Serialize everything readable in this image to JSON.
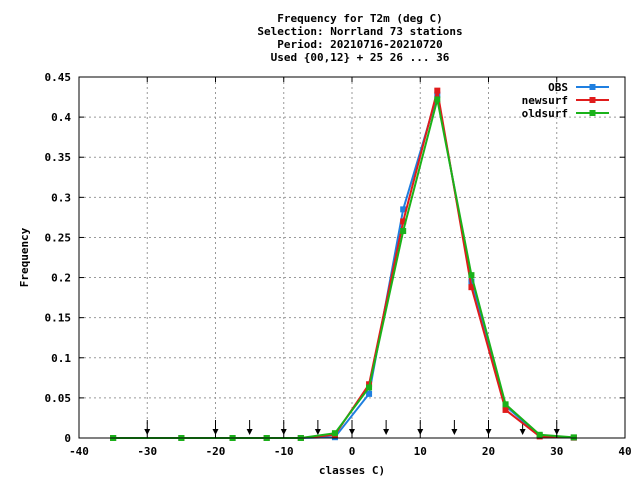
{
  "chart_data": {
    "type": "line",
    "title_lines": [
      "Frequency  for T2m (deg C)",
      "Selection: Norrland     73 stations",
      "Period: 20210716-20210720",
      "Used {00,12} + 25 26 ... 36"
    ],
    "xlabel": "classes C)",
    "ylabel": "Frequency",
    "xlim": [
      -40,
      40
    ],
    "ylim": [
      0,
      0.45
    ],
    "xticks": [
      -40,
      -30,
      -20,
      -10,
      0,
      10,
      20,
      30,
      40
    ],
    "yticks": [
      0,
      0.05,
      0.1,
      0.15,
      0.2,
      0.25,
      0.3,
      0.35,
      0.4,
      0.45
    ],
    "ytick_labels": [
      "0",
      "0.05",
      "0.1",
      "0.15",
      "0.2",
      "0.25",
      "0.3",
      "0.35",
      "0.4",
      "0.45"
    ],
    "grid": true,
    "legend_position": "top-right",
    "arrow_markers_x": [
      -30,
      -20,
      -15,
      -10,
      -5,
      0,
      5,
      10,
      15,
      20,
      25,
      30
    ],
    "x": [
      -35,
      -25,
      -17.5,
      -12.5,
      -7.5,
      -2.5,
      2.5,
      7.5,
      12.5,
      17.5,
      22.5,
      27.5,
      32.5
    ],
    "series": [
      {
        "name": "OBS",
        "color": "#1f7fe0",
        "values": [
          0,
          0,
          0,
          0,
          0,
          0.001,
          0.055,
          0.285,
          0.428,
          0.195,
          0.04,
          0.003,
          0.0005
        ]
      },
      {
        "name": "newsurf",
        "color": "#e01c1c",
        "values": [
          0,
          0,
          0,
          0,
          0,
          0.004,
          0.067,
          0.27,
          0.433,
          0.188,
          0.035,
          0.002,
          0.0005
        ]
      },
      {
        "name": "oldsurf",
        "color": "#1ab21a",
        "values": [
          0,
          0,
          0,
          0,
          0,
          0.006,
          0.063,
          0.258,
          0.422,
          0.203,
          0.042,
          0.004,
          0.0008
        ]
      }
    ]
  }
}
